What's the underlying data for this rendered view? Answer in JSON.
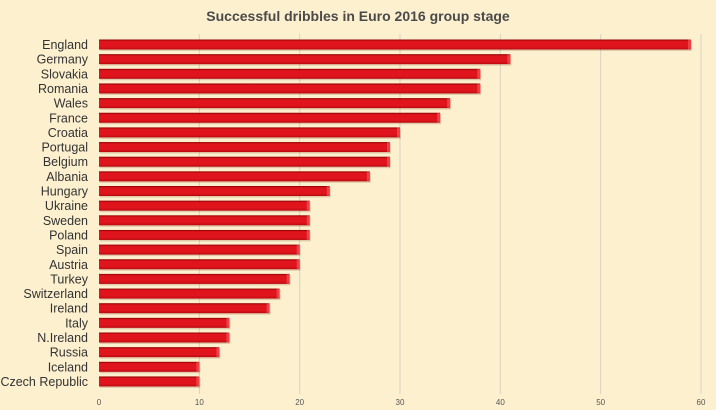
{
  "chart_data": {
    "type": "bar",
    "orientation": "horizontal",
    "title": "Successful dribbles in Euro 2016 group stage",
    "xlabel": "",
    "ylabel": "",
    "xlim": [
      0,
      60
    ],
    "xticks": [
      "0",
      "10",
      "20",
      "30",
      "40",
      "50",
      "60"
    ],
    "grid": true,
    "legend": "none",
    "categories": [
      "England",
      "Germany",
      "Slovakia",
      "Romania",
      "Wales",
      "France",
      "Croatia",
      "Portugal",
      "Belgium",
      "Albania",
      "Hungary",
      "Ukraine",
      "Sweden",
      "Poland",
      "Spain",
      "Austria",
      "Turkey",
      "Switzerland",
      "Ireland",
      "Italy",
      "N.Ireland",
      "Russia",
      "Iceland",
      "Czech Republic"
    ],
    "values": [
      59,
      41,
      38,
      38,
      35,
      34,
      30,
      29,
      29,
      27,
      23,
      21,
      21,
      21,
      20,
      20,
      19,
      18,
      17,
      13,
      13,
      12,
      10,
      10
    ],
    "colors": {
      "background": "#fdf0cf",
      "bar_top": "#8b0000",
      "bar_main": "#e0141c",
      "bar_bottom": "#b8080f",
      "grid": "#d9d2c0"
    }
  }
}
